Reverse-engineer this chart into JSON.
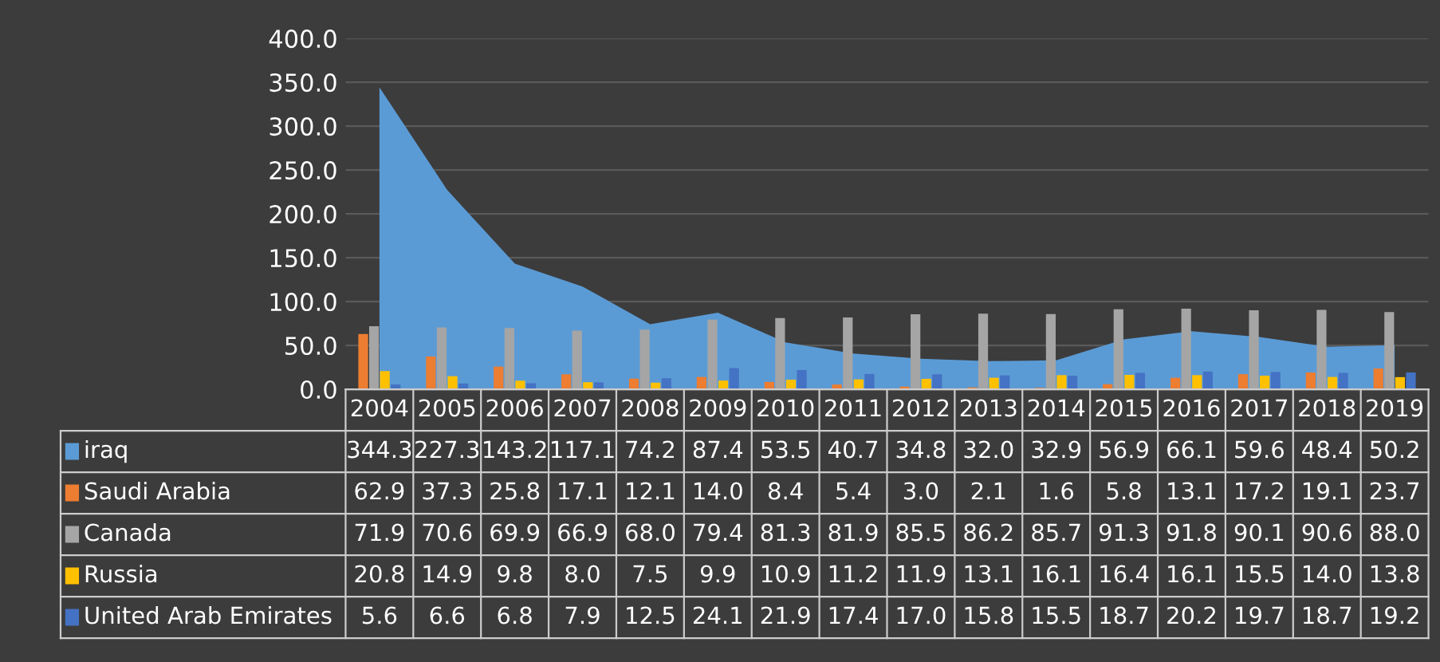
{
  "chart_data": {
    "type": "bar",
    "categories": [
      "2004",
      "2005",
      "2006",
      "2007",
      "2008",
      "2009",
      "2010",
      "2011",
      "2012",
      "2013",
      "2014",
      "2015",
      "2016",
      "2017",
      "2018",
      "2019"
    ],
    "series": [
      {
        "name": "iraq",
        "type": "area",
        "color": "#5b9bd5",
        "values": [
          344.3,
          227.3,
          143.2,
          117.1,
          74.2,
          87.4,
          53.5,
          40.7,
          34.8,
          32.0,
          32.9,
          56.9,
          66.1,
          59.6,
          48.4,
          50.2
        ],
        "value_labels": [
          "344.3",
          "227.3",
          "143.2",
          "117.1",
          "74.2",
          "87.4",
          "53.5",
          "40.7",
          "34.8",
          "32.0",
          "32.9",
          "56.9",
          "66.1",
          "59.6",
          "48.4",
          "50.2"
        ]
      },
      {
        "name": "Saudi Arabia",
        "color": "#ed7d31",
        "values": [
          62.9,
          37.3,
          25.8,
          17.1,
          12.1,
          14.0,
          8.4,
          5.4,
          3.0,
          2.1,
          1.6,
          5.8,
          13.1,
          17.2,
          19.1,
          23.7
        ],
        "value_labels": [
          "62.9",
          "37.3",
          "25.8",
          "17.1",
          "12.1",
          "14.0",
          "8.4",
          "5.4",
          "3.0",
          "2.1",
          "1.6",
          "5.8",
          "13.1",
          "17.2",
          "19.1",
          "23.7"
        ]
      },
      {
        "name": "Canada",
        "color": "#a5a5a5",
        "values": [
          71.9,
          70.6,
          69.9,
          66.9,
          68.0,
          79.4,
          81.3,
          81.9,
          85.5,
          86.2,
          85.7,
          91.3,
          91.8,
          90.1,
          90.6,
          88.0
        ],
        "value_labels": [
          "71.9",
          "70.6",
          "69.9",
          "66.9",
          "68.0",
          "79.4",
          "81.3",
          "81.9",
          "85.5",
          "86.2",
          "85.7",
          "91.3",
          "91.8",
          "90.1",
          "90.6",
          "88.0"
        ]
      },
      {
        "name": "Russia",
        "color": "#ffc000",
        "values": [
          20.8,
          14.9,
          9.8,
          8.0,
          7.5,
          9.9,
          10.9,
          11.2,
          11.9,
          13.1,
          16.1,
          16.4,
          16.1,
          15.5,
          14.0,
          13.8
        ],
        "value_labels": [
          "20.8",
          "14.9",
          "9.8",
          "8.0",
          "7.5",
          "9.9",
          "10.9",
          "11.2",
          "11.9",
          "13.1",
          "16.1",
          "16.4",
          "16.1",
          "15.5",
          "14.0",
          "13.8"
        ]
      },
      {
        "name": "United Arab Emirates",
        "color": "#4472c4",
        "values": [
          5.6,
          6.6,
          6.8,
          7.9,
          12.5,
          24.1,
          21.9,
          17.4,
          17.0,
          15.8,
          15.5,
          18.7,
          20.2,
          19.7,
          18.7,
          19.2
        ],
        "value_labels": [
          "5.6",
          "6.6",
          "6.8",
          "7.9",
          "12.5",
          "24.1",
          "21.9",
          "17.4",
          "17.0",
          "15.8",
          "15.5",
          "18.7",
          "20.2",
          "19.7",
          "18.7",
          "19.2"
        ]
      }
    ],
    "ylim": [
      0,
      400
    ],
    "yticks": [
      {
        "value": 0,
        "label": "0.0"
      },
      {
        "value": 50,
        "label": "50.0"
      },
      {
        "value": 100,
        "label": "100.0"
      },
      {
        "value": 150,
        "label": "150.0"
      },
      {
        "value": 200,
        "label": "200.0"
      },
      {
        "value": 250,
        "label": "250.0"
      },
      {
        "value": 300,
        "label": "300.0"
      },
      {
        "value": 350,
        "label": "350.0"
      },
      {
        "value": 400,
        "label": "400.0"
      }
    ],
    "grid": "y",
    "legend": "bottom left"
  }
}
